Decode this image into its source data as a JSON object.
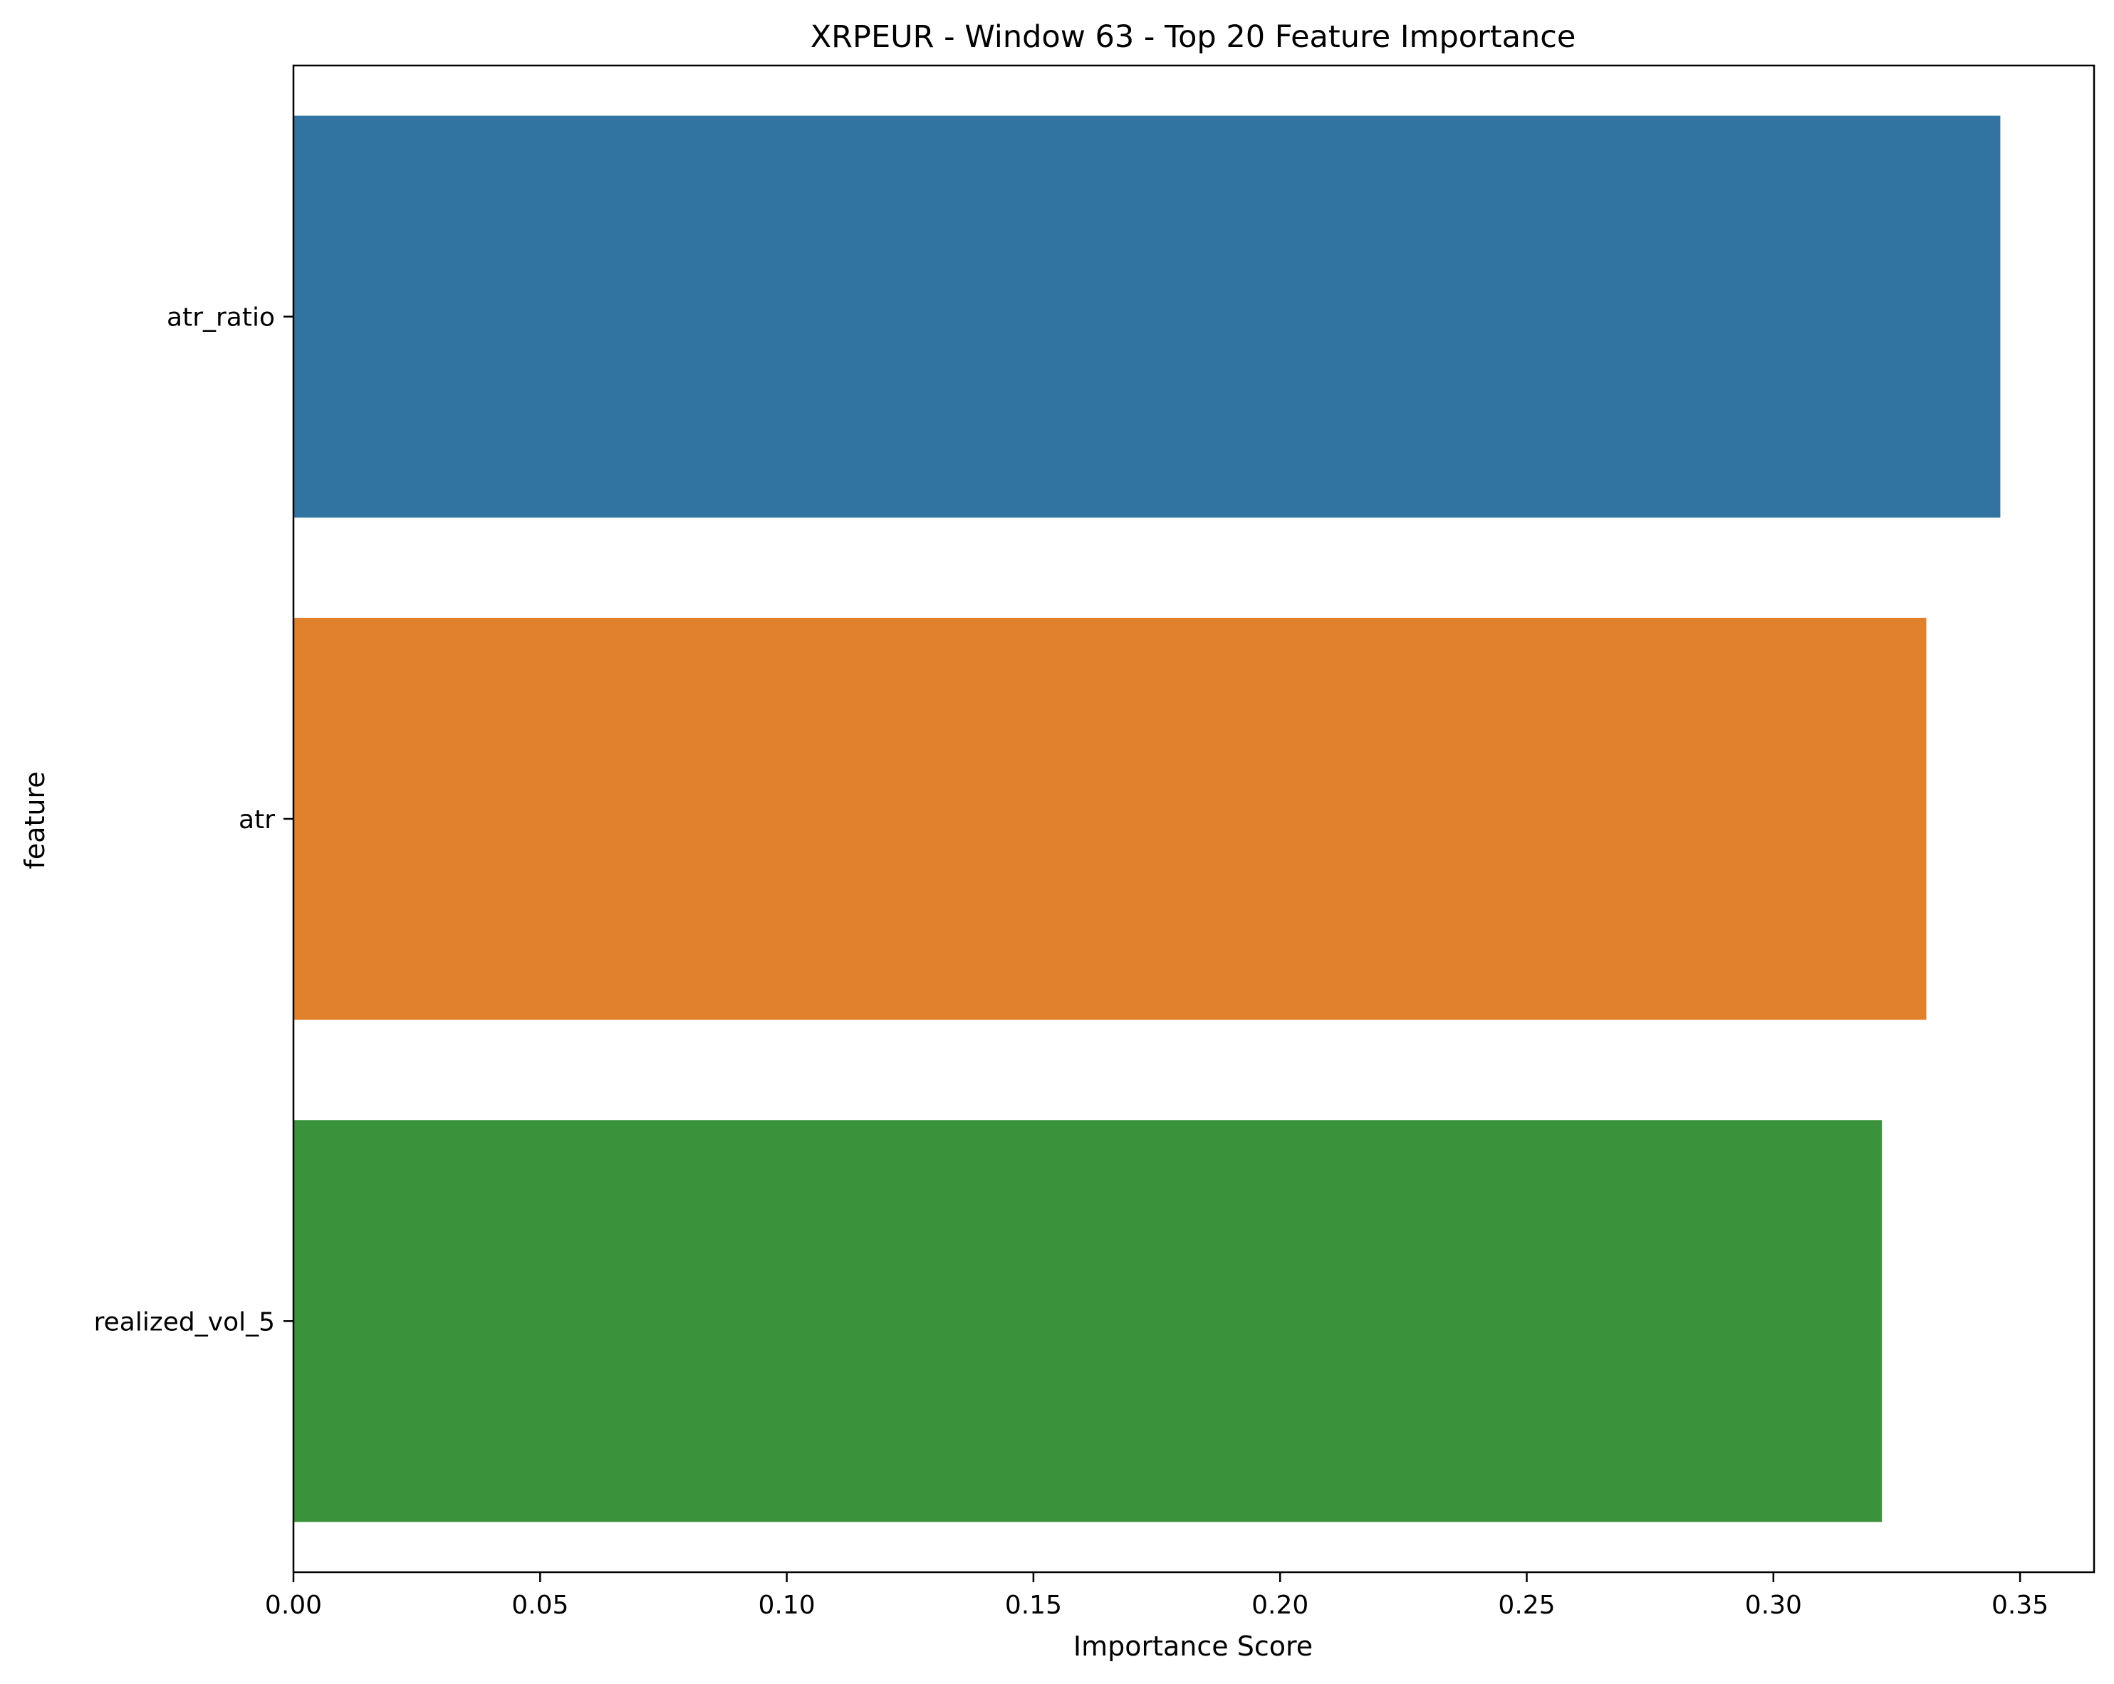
{
  "chart_data": {
    "type": "bar",
    "orientation": "horizontal",
    "title": "XRPEUR - Window 63 - Top 20 Feature Importance",
    "xlabel": "Importance Score",
    "ylabel": "feature",
    "categories": [
      "atr_ratio",
      "atr",
      "realized_vol_5"
    ],
    "values": [
      0.346,
      0.331,
      0.322
    ],
    "colors": [
      "#3274a1",
      "#e1812c",
      "#3a923a"
    ],
    "xlim": [
      0,
      0.365
    ],
    "xticks": [
      {
        "value": 0.0,
        "label": "0.00"
      },
      {
        "value": 0.05,
        "label": "0.05"
      },
      {
        "value": 0.1,
        "label": "0.10"
      },
      {
        "value": 0.15,
        "label": "0.15"
      },
      {
        "value": 0.2,
        "label": "0.20"
      },
      {
        "value": 0.25,
        "label": "0.25"
      },
      {
        "value": 0.3,
        "label": "0.30"
      },
      {
        "value": 0.35,
        "label": "0.35"
      }
    ],
    "grid": false,
    "legend": "none"
  }
}
